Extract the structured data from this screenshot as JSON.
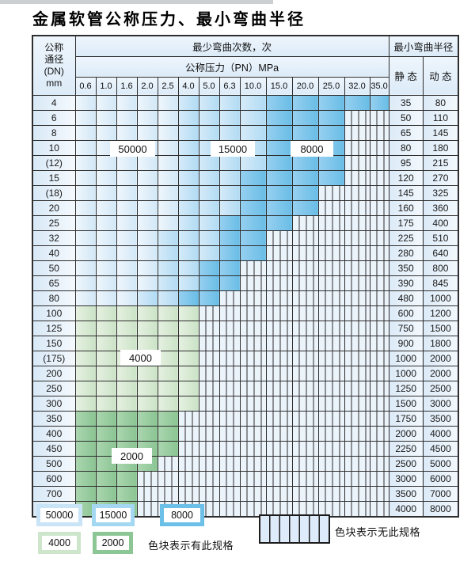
{
  "title": "金属软管公称压力、最小弯曲半径",
  "table": {
    "header": {
      "dn_lines": [
        "公称",
        "通径",
        "(DN)",
        "mm"
      ],
      "cycles_label": "最少弯曲次数，次",
      "radius_label": "最小弯曲半径",
      "pressure_label": "公称压力（PN）MPa",
      "static_label": "静 态",
      "dynamic_label": "动 态",
      "pressures": [
        "0.6",
        "1.0",
        "1.6",
        "2.0",
        "2.5",
        "4.0",
        "5.0",
        "6.3",
        "10.0",
        "15.0",
        "20.0",
        "25.0",
        "32.0",
        "35.0"
      ]
    },
    "rows": [
      {
        "dn": "4",
        "cycles": [
          50000,
          50000,
          50000,
          50000,
          50000,
          15000,
          15000,
          15000,
          15000,
          8000,
          8000,
          8000,
          8000,
          8000
        ],
        "static": "35",
        "dynamic": "80"
      },
      {
        "dn": "6",
        "cycles": [
          50000,
          50000,
          50000,
          50000,
          50000,
          15000,
          15000,
          15000,
          15000,
          8000,
          8000,
          8000,
          null,
          null
        ],
        "static": "50",
        "dynamic": "110"
      },
      {
        "dn": "8",
        "cycles": [
          50000,
          50000,
          50000,
          50000,
          50000,
          15000,
          15000,
          15000,
          15000,
          8000,
          8000,
          8000,
          null,
          null
        ],
        "static": "65",
        "dynamic": "145"
      },
      {
        "dn": "10",
        "cycles": [
          50000,
          50000,
          50000,
          50000,
          50000,
          15000,
          15000,
          15000,
          15000,
          8000,
          8000,
          8000,
          null,
          null
        ],
        "static": "80",
        "dynamic": "180"
      },
      {
        "dn": "(12)",
        "cycles": [
          50000,
          50000,
          50000,
          50000,
          50000,
          15000,
          15000,
          15000,
          15000,
          8000,
          8000,
          8000,
          null,
          null
        ],
        "static": "95",
        "dynamic": "215"
      },
      {
        "dn": "15",
        "cycles": [
          50000,
          50000,
          50000,
          50000,
          50000,
          15000,
          15000,
          15000,
          8000,
          8000,
          8000,
          8000,
          null,
          null
        ],
        "static": "120",
        "dynamic": "270"
      },
      {
        "dn": "(18)",
        "cycles": [
          50000,
          50000,
          50000,
          50000,
          50000,
          15000,
          15000,
          15000,
          8000,
          8000,
          8000,
          null,
          null,
          null
        ],
        "static": "145",
        "dynamic": "325"
      },
      {
        "dn": "20",
        "cycles": [
          50000,
          50000,
          50000,
          50000,
          50000,
          15000,
          15000,
          15000,
          8000,
          8000,
          8000,
          null,
          null,
          null
        ],
        "static": "160",
        "dynamic": "360"
      },
      {
        "dn": "25",
        "cycles": [
          50000,
          50000,
          50000,
          50000,
          50000,
          15000,
          15000,
          8000,
          8000,
          8000,
          null,
          null,
          null,
          null
        ],
        "static": "175",
        "dynamic": "400"
      },
      {
        "dn": "32",
        "cycles": [
          50000,
          50000,
          50000,
          50000,
          15000,
          15000,
          15000,
          8000,
          8000,
          null,
          null,
          null,
          null,
          null
        ],
        "static": "225",
        "dynamic": "510"
      },
      {
        "dn": "40",
        "cycles": [
          50000,
          50000,
          50000,
          50000,
          15000,
          15000,
          15000,
          8000,
          8000,
          null,
          null,
          null,
          null,
          null
        ],
        "static": "280",
        "dynamic": "640"
      },
      {
        "dn": "50",
        "cycles": [
          50000,
          50000,
          50000,
          50000,
          15000,
          15000,
          8000,
          8000,
          null,
          null,
          null,
          null,
          null,
          null
        ],
        "static": "350",
        "dynamic": "800"
      },
      {
        "dn": "65",
        "cycles": [
          50000,
          50000,
          50000,
          50000,
          15000,
          15000,
          8000,
          8000,
          null,
          null,
          null,
          null,
          null,
          null
        ],
        "static": "390",
        "dynamic": "845"
      },
      {
        "dn": "80",
        "cycles": [
          50000,
          50000,
          50000,
          15000,
          15000,
          8000,
          8000,
          null,
          null,
          null,
          null,
          null,
          null,
          null
        ],
        "static": "480",
        "dynamic": "1000"
      },
      {
        "dn": "100",
        "cycles": [
          4000,
          4000,
          4000,
          4000,
          4000,
          4000,
          null,
          null,
          null,
          null,
          null,
          null,
          null,
          null
        ],
        "static": "600",
        "dynamic": "1200"
      },
      {
        "dn": "125",
        "cycles": [
          4000,
          4000,
          4000,
          4000,
          4000,
          4000,
          null,
          null,
          null,
          null,
          null,
          null,
          null,
          null
        ],
        "static": "750",
        "dynamic": "1500"
      },
      {
        "dn": "150",
        "cycles": [
          4000,
          4000,
          4000,
          4000,
          4000,
          4000,
          null,
          null,
          null,
          null,
          null,
          null,
          null,
          null
        ],
        "static": "900",
        "dynamic": "1800"
      },
      {
        "dn": "(175)",
        "cycles": [
          4000,
          4000,
          4000,
          4000,
          4000,
          4000,
          null,
          null,
          null,
          null,
          null,
          null,
          null,
          null
        ],
        "static": "1000",
        "dynamic": "2000"
      },
      {
        "dn": "200",
        "cycles": [
          4000,
          4000,
          4000,
          4000,
          4000,
          4000,
          null,
          null,
          null,
          null,
          null,
          null,
          null,
          null
        ],
        "static": "1000",
        "dynamic": "2000"
      },
      {
        "dn": "250",
        "cycles": [
          4000,
          4000,
          4000,
          4000,
          4000,
          4000,
          null,
          null,
          null,
          null,
          null,
          null,
          null,
          null
        ],
        "static": "1250",
        "dynamic": "2500"
      },
      {
        "dn": "300",
        "cycles": [
          4000,
          4000,
          4000,
          4000,
          4000,
          4000,
          null,
          null,
          null,
          null,
          null,
          null,
          null,
          null
        ],
        "static": "1500",
        "dynamic": "3000"
      },
      {
        "dn": "350",
        "cycles": [
          2000,
          2000,
          2000,
          2000,
          2000,
          null,
          null,
          null,
          null,
          null,
          null,
          null,
          null,
          null
        ],
        "static": "1750",
        "dynamic": "3500"
      },
      {
        "dn": "400",
        "cycles": [
          2000,
          2000,
          2000,
          2000,
          2000,
          null,
          null,
          null,
          null,
          null,
          null,
          null,
          null,
          null
        ],
        "static": "2000",
        "dynamic": "4000"
      },
      {
        "dn": "450",
        "cycles": [
          2000,
          2000,
          2000,
          2000,
          2000,
          null,
          null,
          null,
          null,
          null,
          null,
          null,
          null,
          null
        ],
        "static": "2250",
        "dynamic": "4500"
      },
      {
        "dn": "500",
        "cycles": [
          2000,
          2000,
          2000,
          2000,
          null,
          null,
          null,
          null,
          null,
          null,
          null,
          null,
          null,
          null
        ],
        "static": "2500",
        "dynamic": "5000"
      },
      {
        "dn": "600",
        "cycles": [
          2000,
          2000,
          2000,
          null,
          null,
          null,
          null,
          null,
          null,
          null,
          null,
          null,
          null,
          null
        ],
        "static": "3000",
        "dynamic": "6000"
      },
      {
        "dn": "700",
        "cycles": [
          2000,
          2000,
          2000,
          null,
          null,
          null,
          null,
          null,
          null,
          null,
          null,
          null,
          null,
          null
        ],
        "static": "3500",
        "dynamic": "7000"
      },
      {
        "dn": "800",
        "cycles": [
          2000,
          2000,
          2000,
          null,
          null,
          null,
          null,
          null,
          null,
          null,
          null,
          null,
          null,
          null
        ],
        "static": "4000",
        "dynamic": "8000"
      }
    ]
  },
  "overlays": {
    "b50000": "50000",
    "b15000": "15000",
    "b8000": "8000",
    "b4000": "4000",
    "b2000": "2000"
  },
  "legend": {
    "swatches": [
      {
        "label": "50000",
        "color": "#c9e4f6"
      },
      {
        "label": "15000",
        "color": "#a3d7f2"
      },
      {
        "label": "8000",
        "color": "#6cc0e8"
      },
      {
        "label": "4000",
        "color": "#cde5ca"
      },
      {
        "label": "2000",
        "color": "#8dc695"
      }
    ],
    "has_spec_text": "色块表示有此规格",
    "no_spec_text": "色块表示无此规格"
  },
  "colors": {
    "cycles_50000": "#d2e8f7",
    "cycles_15000": "#b1dbf3",
    "cycles_8000": "#69bde6",
    "cycles_4000": "#cbe3c7",
    "cycles_2000": "#8bc593",
    "no_spec_bg": "#ebf3fb",
    "grid": "#2e2e2e"
  }
}
